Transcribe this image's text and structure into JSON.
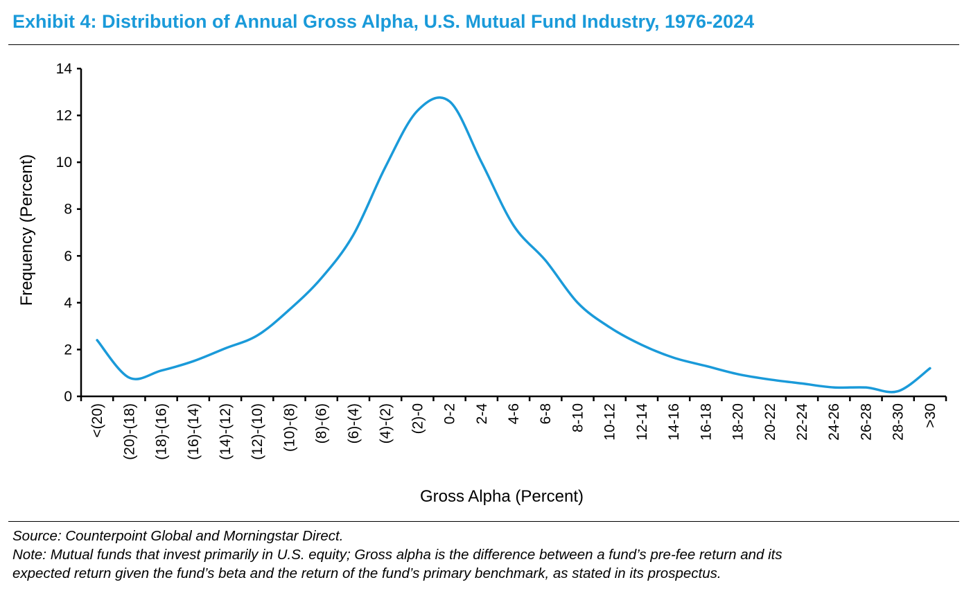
{
  "header": {
    "title": "Exhibit 4: Distribution of Annual Gross Alpha, U.S. Mutual Fund Industry, 1976-2024"
  },
  "footer": {
    "source": "Source: Counterpoint Global and Morningstar Direct.",
    "note_line1": "Note: Mutual funds that invest primarily in U.S. equity; Gross alpha is the difference between a fund’s pre-fee return and its",
    "note_line2": "expected return given the fund’s beta and the return of the fund’s primary benchmark, as stated in its prospectus."
  },
  "chart_data": {
    "type": "line",
    "smooth": true,
    "title": "",
    "xlabel": "Gross Alpha (Percent)",
    "ylabel": "Frequency (Percent)",
    "ylim": [
      0,
      14
    ],
    "yticks": [
      0,
      2,
      4,
      6,
      8,
      10,
      12,
      14
    ],
    "grid": false,
    "legend": "none",
    "line_color": "#1a9ad9",
    "categories": [
      "<(20)",
      "(20)-(18)",
      "(18)-(16)",
      "(16)-(14)",
      "(14)-(12)",
      "(12)-(10)",
      "(10)-(8)",
      "(8)-(6)",
      "(6)-(4)",
      "(4)-(2)",
      "(2)-0",
      "0-2",
      "2-4",
      "4-6",
      "6-8",
      "8-10",
      "10-12",
      "12-14",
      "14-16",
      "16-18",
      "18-20",
      "20-22",
      "22-24",
      "24-26",
      "26-28",
      "28-30",
      ">30"
    ],
    "series": [
      {
        "values": [
          2.4,
          0.8,
          1.1,
          1.5,
          2.05,
          2.6,
          3.7,
          5.05,
          6.9,
          9.8,
          12.2,
          12.6,
          10.0,
          7.3,
          5.8,
          4.0,
          2.95,
          2.2,
          1.65,
          1.3,
          0.95,
          0.72,
          0.55,
          0.38,
          0.38,
          0.22,
          1.2
        ]
      }
    ]
  }
}
